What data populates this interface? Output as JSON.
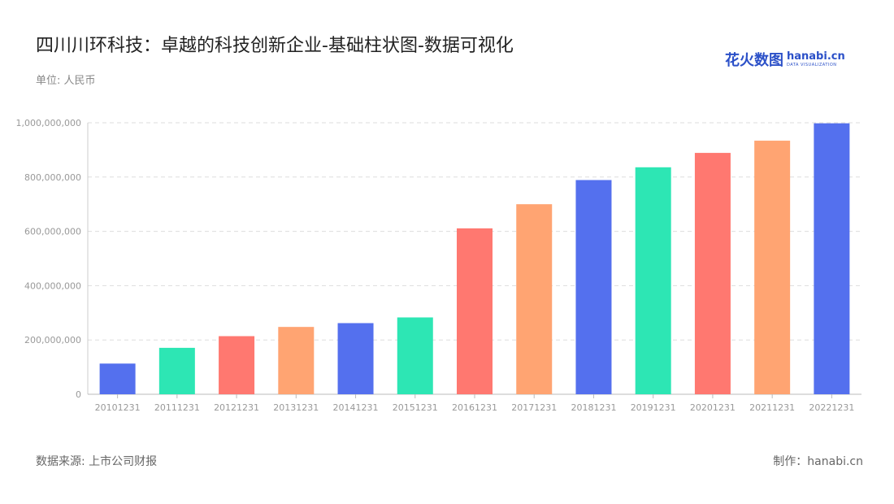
{
  "header": {
    "title": "四川川环科技：卓越的科技创新企业-基础柱状图-数据可视化",
    "unit": "单位: 人民币"
  },
  "logo": {
    "cn": "花火数图",
    "en": "hanabi.cn",
    "sub": "DATA VISUALIZATION"
  },
  "footer": {
    "source": "数据来源: 上市公司财报",
    "credit": "制作：hanabi.cn"
  },
  "chart_data": {
    "type": "bar",
    "categories": [
      "20101231",
      "20111231",
      "20121231",
      "20131231",
      "20141231",
      "20151231",
      "20161231",
      "20171231",
      "20181231",
      "20191231",
      "20201231",
      "20211231",
      "20221231"
    ],
    "values": [
      113000000,
      171000000,
      214000000,
      248000000,
      262000000,
      283000000,
      611000000,
      700000000,
      789000000,
      836000000,
      889000000,
      934000000,
      998000000
    ],
    "ylim": [
      0,
      1000000000
    ],
    "yticks": [
      0,
      200000000,
      400000000,
      600000000,
      800000000,
      1000000000
    ],
    "ytick_labels": [
      "0",
      "200,000,000",
      "400,000,000",
      "600,000,000",
      "800,000,000",
      "1,000,000,000"
    ],
    "bar_colors": [
      "#5470ee",
      "#2de6b4",
      "#ff7870",
      "#ffa472"
    ],
    "grid": true
  }
}
